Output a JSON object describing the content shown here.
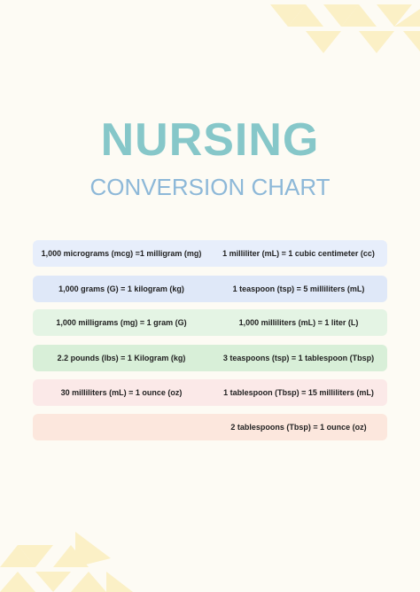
{
  "header": {
    "title": "NURSING",
    "subtitle": "CONVERSION CHART"
  },
  "table": {
    "rows": [
      {
        "left": "1,000 micrograms (mcg) =1 milligram (mg)",
        "right": "1 milliliter (mL) = 1 cubic centimeter  (cc)"
      },
      {
        "left": "1,000 grams (G) = 1 kilogram (kg)",
        "right": "1 teaspoon (tsp) = 5 milliliters (mL)"
      },
      {
        "left": "1,000 milligrams (mg) = 1 gram (G)",
        "right": "1,000 milliliters (mL) = 1 liter  (L)"
      },
      {
        "left": "2.2 pounds (lbs) = 1 Kilogram (kg)",
        "right": "3 teaspoons (tsp) = 1 tablespoon (Tbsp)"
      },
      {
        "left": "30 milliliters (mL) = 1 ounce (oz)",
        "right": "1 tablespoon (Tbsp) = 15 milliliters (mL)"
      },
      {
        "right": "2 tablespoons (Tbsp) = 1 ounce (oz)"
      }
    ]
  }
}
